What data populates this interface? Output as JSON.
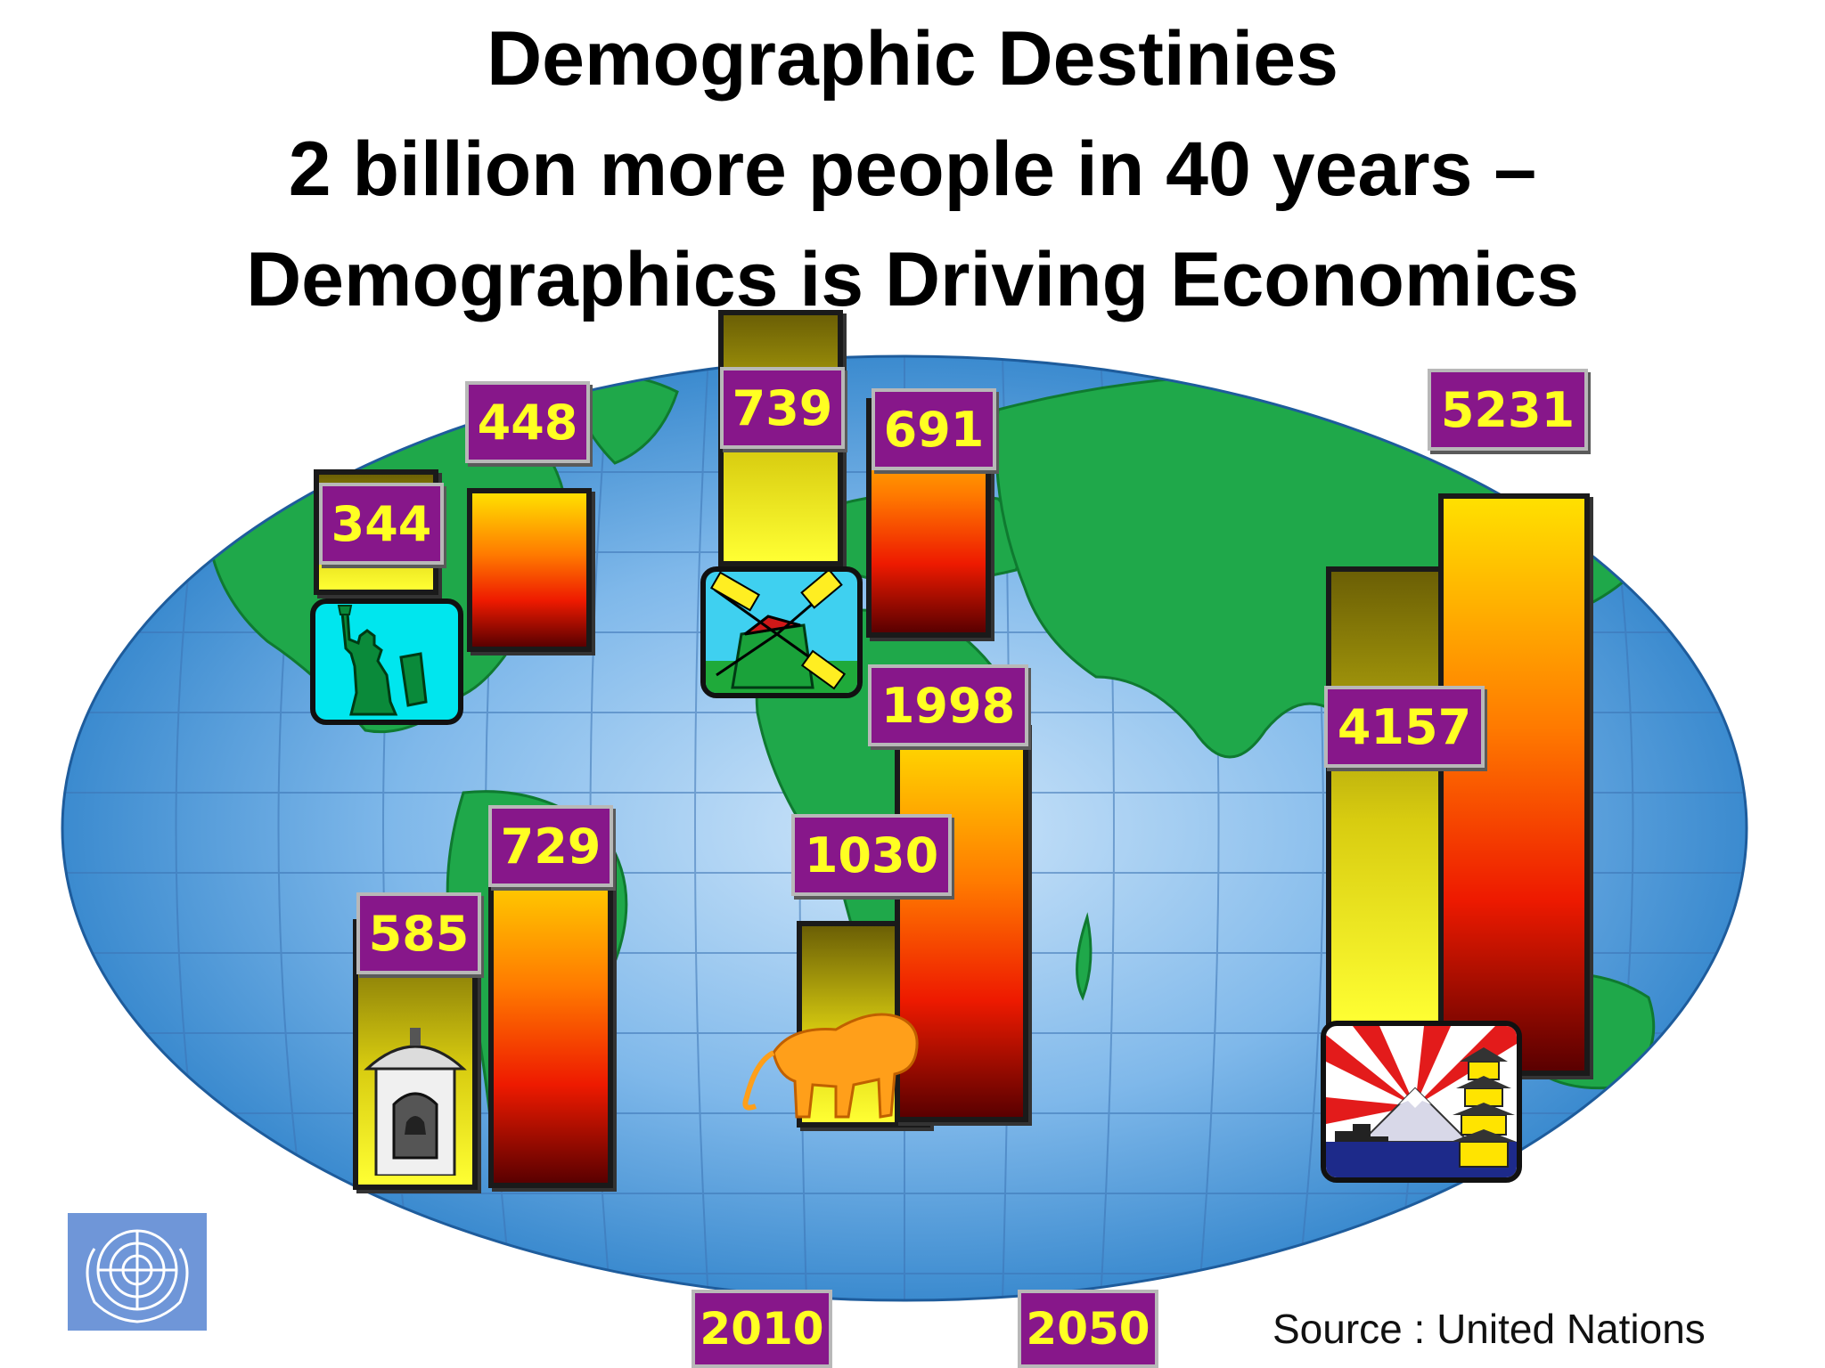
{
  "title": {
    "line1": "Demographic Destinies",
    "line2": "2 billion more people in 40 years –",
    "line3": "Demographics is Driving Economics"
  },
  "legend": {
    "year_2010": "2010",
    "year_2050": "2050"
  },
  "source": "Source : United Nations",
  "icons": {
    "north_america": "statue-of-liberty-icon",
    "europe": "windmill-icon",
    "latin_america": "bell-tower-icon",
    "africa": "lion-icon",
    "asia": "mount-fuji-pagoda-icon",
    "logo": "united-nations-logo"
  },
  "colors": {
    "tag_bg": "#87178a",
    "tag_text": "#ffff22",
    "bar_2050_top": "#ffe000",
    "bar_2050_bottom": "#5a0000",
    "bar_2010_top": "#6b5f05",
    "bar_2010_bottom": "#ffff33"
  },
  "chart_data": {
    "type": "bar",
    "title": "Demographic Destinies",
    "series": [
      {
        "name": "2010",
        "values": [
          344,
          739,
          585,
          1030,
          4157
        ]
      },
      {
        "name": "2050",
        "values": [
          448,
          691,
          729,
          1998,
          5231
        ]
      }
    ],
    "labels": {
      "v2010": [
        "344",
        "739",
        "585",
        "1030",
        "4157"
      ],
      "v2050": [
        "448",
        "691",
        "729",
        "1998",
        "5231"
      ]
    },
    "grid": false,
    "legend_position": "bottom-center"
  }
}
